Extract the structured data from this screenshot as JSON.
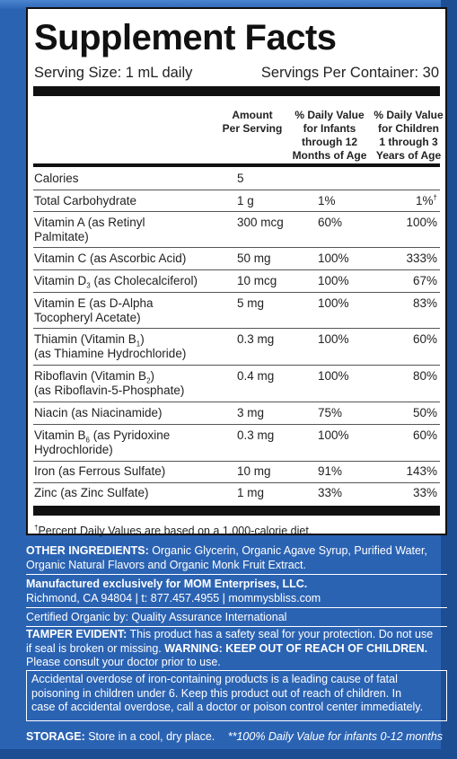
{
  "panel": {
    "title": "Supplement Facts",
    "serving_size": "Serving Size: 1 mL daily",
    "servings_per_container": "Servings Per Container: 30",
    "headers": {
      "amount": "Amount\nPer Serving",
      "infants": "% Daily Value\nfor Infants\nthrough 12\nMonths of Age",
      "children": "% Daily Value\nfor Children\n1 through 3\nYears of Age"
    },
    "rows": [
      {
        "name": "Calories",
        "amount": "5",
        "infants": "",
        "children": ""
      },
      {
        "name": "Total Carbohydrate",
        "amount": "1 g",
        "infants": "1%",
        "children": "1%",
        "children_mark": "†"
      },
      {
        "name_line1": "Vitamin A (as Retinyl",
        "name_line2": "Palmitate)",
        "amount": "300 mcg",
        "infants": "60%",
        "children": "100%"
      },
      {
        "name": "Vitamin C (as Ascorbic Acid)",
        "amount": "50 mg",
        "infants": "100%",
        "children": "333%"
      },
      {
        "name_pre": "Vitamin D",
        "name_sub": "3",
        "name_post": " (as Cholecalciferol)",
        "amount": "10 mcg",
        "infants": "100%",
        "children": "67%"
      },
      {
        "name_line1": "Vitamin E (as D-Alpha",
        "name_line2": "Tocopheryl Acetate)",
        "amount": "5 mg",
        "infants": "100%",
        "children": "83%"
      },
      {
        "name_pre": "Thiamin (Vitamin B",
        "name_sub": "1",
        "name_post": ")",
        "name_line2": "(as Thiamine Hydrochloride)",
        "amount": "0.3 mg",
        "infants": "100%",
        "children": "60%"
      },
      {
        "name_pre": "Riboflavin (Vitamin B",
        "name_sub": "2",
        "name_post": ")",
        "name_line2": "(as Riboflavin-5-Phosphate)",
        "amount": "0.4 mg",
        "infants": "100%",
        "children": "80%"
      },
      {
        "name": "Niacin (as Niacinamide)",
        "amount": "3 mg",
        "infants": "75%",
        "children": "50%"
      },
      {
        "name_pre": "Vitamin B",
        "name_sub": "6",
        "name_post": " (as Pyridoxine",
        "name_line2": "Hydrochloride)",
        "amount": "0.3 mg",
        "infants": "100%",
        "children": "60%"
      },
      {
        "name": "Iron (as Ferrous Sulfate)",
        "amount": "10 mg",
        "infants": "91%",
        "children": "143%"
      },
      {
        "name": "Zinc (as Zinc Sulfate)",
        "amount": "1 mg",
        "infants": "33%",
        "children": "33%"
      }
    ],
    "footnote_mark": "†",
    "footnote": "Percent Daily Values are based on a 1,000-calorie diet."
  },
  "info": {
    "other_ingredients_label": "OTHER INGREDIENTS:",
    "other_ingredients_line1": " Organic Glycerin, Organic Agave Syrup, Purified Water,",
    "other_ingredients_line2": "Organic Natural Flavors and Organic Monk Fruit Extract.",
    "manufacturer": "Manufactured exclusively for MOM Enterprises, LLC.",
    "address": "Richmond, CA 94804  |  t: 877.457.4955  |  mommysbliss.com",
    "certified": "Certified Organic by: Quality Assurance International",
    "tamper_label": "TAMPER EVIDENT:",
    "tamper_line1": " This product has a safety seal for your protection. Do not use",
    "tamper_line2a": "if seal is broken or missing. ",
    "tamper_line2b": "WARNING: KEEP OUT OF REACH OF CHILDREN.",
    "tamper_line3": "Please consult your doctor prior to use.",
    "warning_line1": "Accidental overdose of iron-containing products is a leading cause of fatal",
    "warning_line2": "poisoning in children under 6. Keep this product out of reach of children. In",
    "warning_line3": "case of accidental overdose, call a doctor or poison control center immediately.",
    "storage_label": "STORAGE:",
    "storage_text": " Store in a cool, dry place.",
    "storage_note": "**100% Daily Value for infants 0-12 months"
  },
  "colors": {
    "background_blue": "#2b63b3",
    "panel_white": "#ffffff",
    "text_dark": "#222222"
  }
}
